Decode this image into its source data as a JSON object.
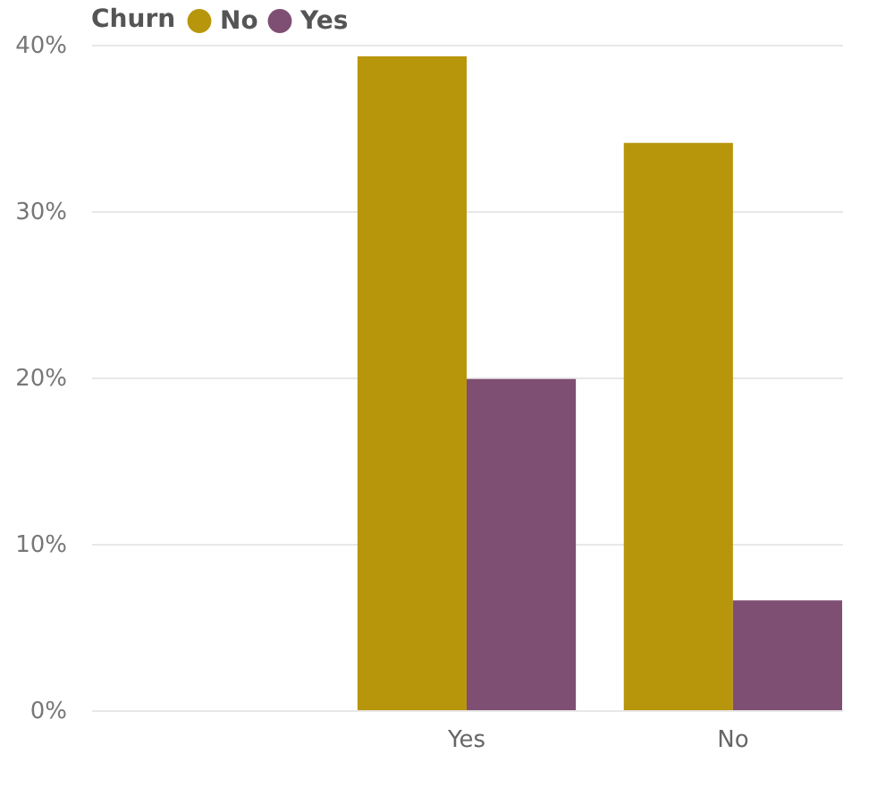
{
  "chart_data": {
    "type": "bar",
    "legend_title": "Churn",
    "categories": [
      null,
      "Yes",
      "No"
    ],
    "series": [
      {
        "name": "No",
        "color": "#b8960c",
        "values": [
          null,
          39.3,
          34.1
        ]
      },
      {
        "name": "Yes",
        "color": "#7e4f72",
        "values": [
          null,
          19.9,
          6.6
        ]
      }
    ],
    "ylim": [
      0,
      40
    ],
    "yticks": [
      {
        "value": 0,
        "label": "0%"
      },
      {
        "value": 10,
        "label": "10%"
      },
      {
        "value": 20,
        "label": "20%"
      },
      {
        "value": 30,
        "label": "30%"
      },
      {
        "value": 40,
        "label": "40%"
      }
    ],
    "grid": "y",
    "legend": "top left"
  }
}
